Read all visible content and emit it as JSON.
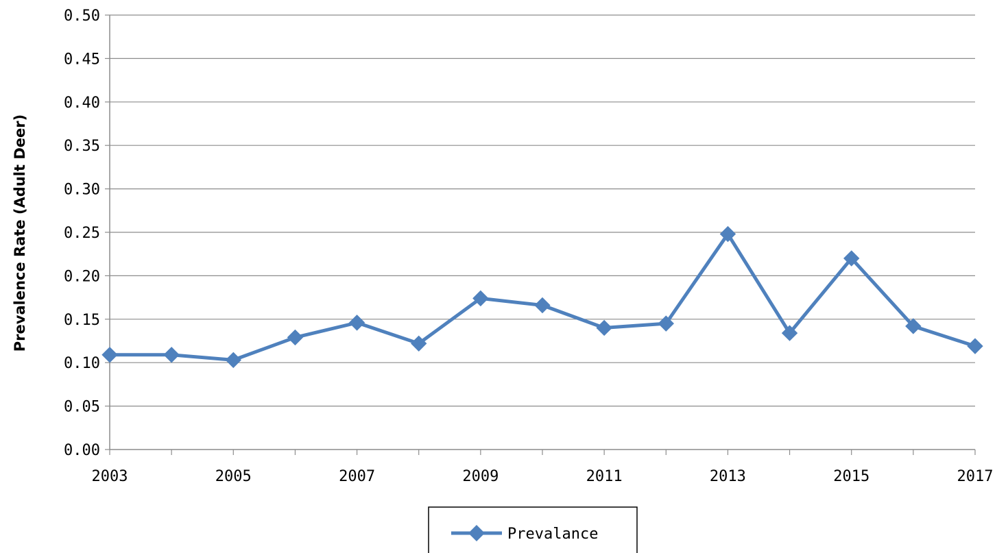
{
  "chart_data": {
    "type": "line",
    "ylabel": "Prevalence Rate (Adult Deer)",
    "xlabel": "",
    "x": [
      2003,
      2004,
      2005,
      2006,
      2007,
      2008,
      2009,
      2010,
      2011,
      2012,
      2013,
      2014,
      2015,
      2016,
      2017
    ],
    "series": [
      {
        "name": "Prevalance",
        "color": "#4F81BD",
        "values": [
          0.109,
          0.109,
          0.103,
          0.129,
          0.146,
          0.122,
          0.174,
          0.166,
          0.14,
          0.145,
          0.248,
          0.134,
          0.22,
          0.142,
          0.119
        ]
      }
    ],
    "xlim": [
      2003,
      2017
    ],
    "ylim": [
      0,
      0.5
    ],
    "y_ticks": [
      "0.00",
      "0.05",
      "0.10",
      "0.15",
      "0.20",
      "0.25",
      "0.30",
      "0.35",
      "0.40",
      "0.45",
      "0.50"
    ],
    "x_tick_labels": [
      "2003",
      "2005",
      "2007",
      "2009",
      "2011",
      "2013",
      "2015",
      "2017"
    ],
    "grid": "horizontal",
    "legend": "bottom-center"
  }
}
